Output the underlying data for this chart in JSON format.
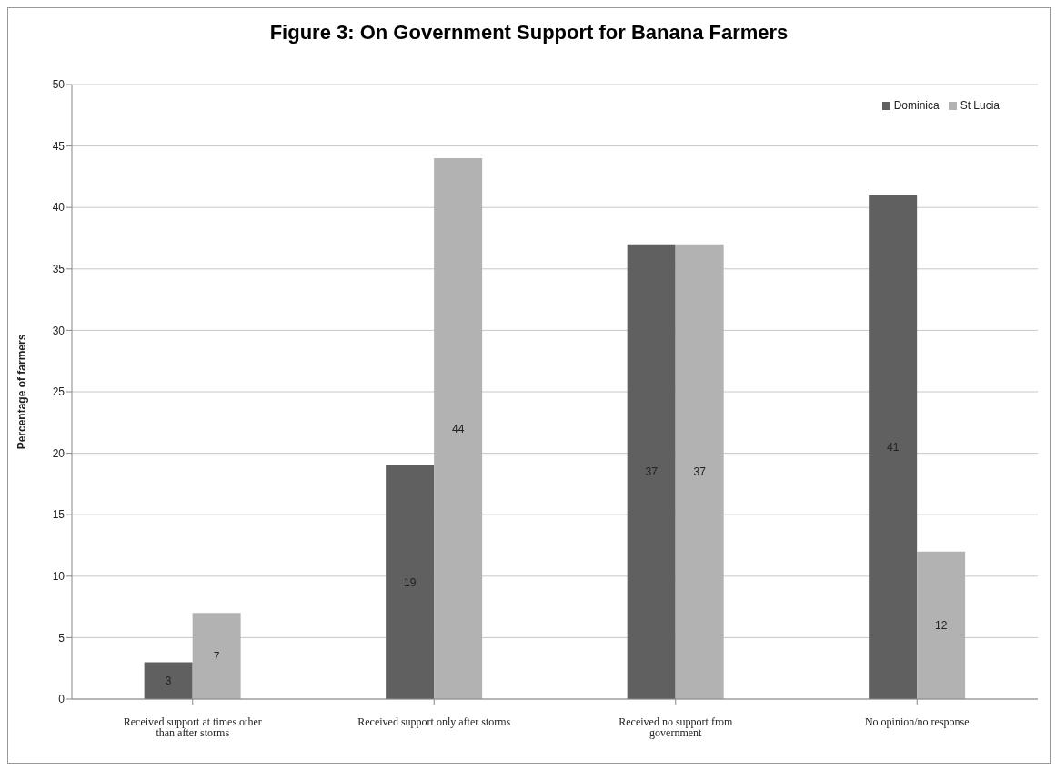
{
  "chart_data": {
    "type": "bar",
    "title": "Figure 3: On Government Support for Banana Farmers",
    "ylabel": "Percentage of farmers",
    "categories": [
      "Received support at times other than after storms",
      "Received support only after storms",
      "Received no support from government",
      "No opinion/no response"
    ],
    "series": [
      {
        "name": "Dominica",
        "color": "#606060",
        "values": [
          3,
          19,
          37,
          41
        ]
      },
      {
        "name": "St Lucia",
        "color": "#b2b2b2",
        "values": [
          7,
          44,
          37,
          12
        ]
      }
    ],
    "ylim": [
      0,
      50
    ],
    "yticks": [
      0,
      5,
      10,
      15,
      20,
      25,
      30,
      35,
      40,
      45,
      50
    ],
    "grid": "y",
    "legend": "top right",
    "data_labels": true
  }
}
